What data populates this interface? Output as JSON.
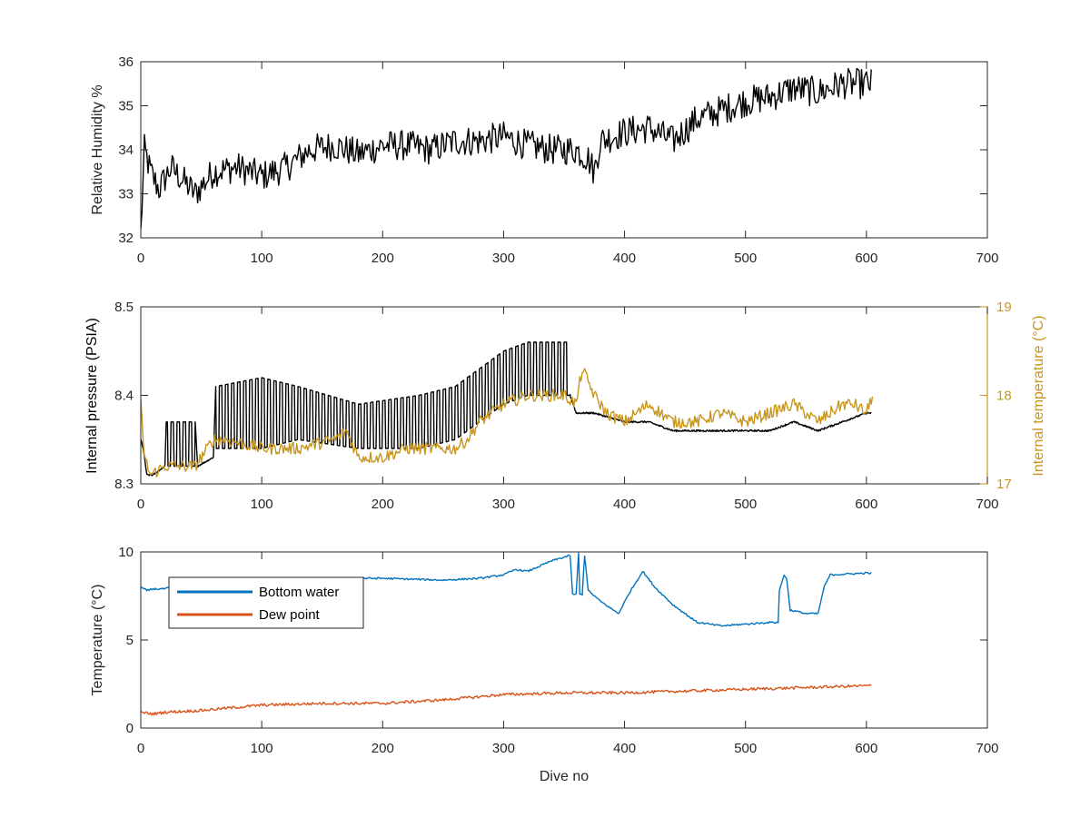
{
  "colors": {
    "background": "#ffffff",
    "axis": "#262626",
    "rh_line": "#000000",
    "pressure_line": "#000000",
    "internal_temp": "#C8961E",
    "bottom_water": "#0072BD",
    "dew_point": "#D95319"
  },
  "chart_data": [
    {
      "type": "line",
      "xlabel": "",
      "ylabel": "Relative Humidity %",
      "xlim": [
        0,
        700
      ],
      "ylim": [
        32,
        36
      ],
      "xticks": [
        0,
        100,
        200,
        300,
        400,
        500,
        600,
        700
      ],
      "yticks": [
        32,
        33,
        34,
        35,
        36
      ],
      "xtick_labels": [
        "0",
        "100",
        "200",
        "300",
        "400",
        "500",
        "600",
        "700"
      ],
      "ytick_labels": [
        "32",
        "33",
        "34",
        "35",
        "36"
      ],
      "grid": false,
      "series": [
        {
          "color": "#000000",
          "noise": 0.35,
          "x": [
            0,
            3,
            8,
            15,
            25,
            35,
            45,
            60,
            80,
            100,
            120,
            140,
            160,
            180,
            200,
            220,
            240,
            260,
            280,
            300,
            320,
            340,
            360,
            370,
            375,
            380,
            400,
            420,
            440,
            460,
            480,
            500,
            520,
            540,
            560,
            580,
            600,
            604
          ],
          "y": [
            32.1,
            34.0,
            33.5,
            33.1,
            33.6,
            33.3,
            33.0,
            33.5,
            33.6,
            33.4,
            33.6,
            34.0,
            34.1,
            33.9,
            34.1,
            34.1,
            34.0,
            34.2,
            34.2,
            34.3,
            34.1,
            34.0,
            34.0,
            33.8,
            33.5,
            34.2,
            34.4,
            34.5,
            34.2,
            34.7,
            34.9,
            35.1,
            35.2,
            35.4,
            35.3,
            35.5,
            35.5,
            35.5
          ]
        }
      ]
    },
    {
      "type": "line",
      "xlabel": "",
      "ylabel": "Internal pressure (PSIA)",
      "ylabel_right": "Internal temperature (°C)",
      "xlim": [
        0,
        700
      ],
      "ylim": [
        8.3,
        8.5
      ],
      "ylim_right": [
        17,
        19
      ],
      "xticks": [
        0,
        100,
        200,
        300,
        400,
        500,
        600,
        700
      ],
      "yticks": [
        8.3,
        8.4,
        8.5
      ],
      "yticks_right": [
        17,
        18,
        19
      ],
      "xtick_labels": [
        "0",
        "100",
        "200",
        "300",
        "400",
        "500",
        "600",
        "700"
      ],
      "ytick_labels": [
        "8.3",
        "8.4",
        "8.5"
      ],
      "ytick_labels_right": [
        "17",
        "18",
        "19"
      ],
      "grid": false,
      "series": [
        {
          "axis": "left",
          "color": "#000000",
          "x": [
            0,
            2,
            5,
            10,
            20,
            21,
            45,
            47,
            60,
            62,
            100,
            130,
            180,
            230,
            260,
            280,
            300,
            320,
            352,
            355,
            360,
            375,
            400,
            420,
            440,
            460,
            480,
            500,
            520,
            540,
            560,
            580,
            600,
            604
          ],
          "lo": [
            8.35,
            8.34,
            8.31,
            8.31,
            8.32,
            8.32,
            8.32,
            8.32,
            8.33,
            8.34,
            8.34,
            8.35,
            8.34,
            8.34,
            8.35,
            8.37,
            8.39,
            8.4,
            8.4,
            8.4,
            8.38,
            8.38,
            8.37,
            8.37,
            8.36,
            8.36,
            8.36,
            8.36,
            8.36,
            8.37,
            8.36,
            8.37,
            8.38,
            8.38
          ],
          "hi": [
            8.35,
            8.34,
            8.31,
            8.31,
            8.32,
            8.37,
            8.37,
            8.32,
            8.33,
            8.41,
            8.42,
            8.41,
            8.39,
            8.4,
            8.41,
            8.43,
            8.45,
            8.46,
            8.46,
            8.4,
            8.38,
            8.38,
            8.37,
            8.37,
            8.36,
            8.36,
            8.36,
            8.36,
            8.36,
            8.37,
            8.36,
            8.37,
            8.38,
            8.38
          ],
          "osc_period": 5
        },
        {
          "axis": "right",
          "color": "#C8961E",
          "noise": 0.07,
          "x": [
            0,
            3,
            8,
            20,
            45,
            50,
            60,
            70,
            100,
            130,
            160,
            170,
            180,
            200,
            220,
            240,
            260,
            270,
            280,
            300,
            320,
            350,
            360,
            365,
            375,
            385,
            400,
            420,
            440,
            460,
            480,
            500,
            520,
            540,
            560,
            580,
            590,
            600,
            605
          ],
          "y": [
            17.9,
            17.3,
            17.1,
            17.2,
            17.2,
            17.3,
            17.5,
            17.5,
            17.4,
            17.4,
            17.5,
            17.6,
            17.3,
            17.3,
            17.4,
            17.4,
            17.4,
            17.5,
            17.7,
            17.9,
            18.0,
            18.0,
            17.9,
            18.3,
            18.0,
            17.8,
            17.7,
            17.9,
            17.7,
            17.7,
            17.8,
            17.7,
            17.8,
            17.9,
            17.7,
            17.9,
            17.9,
            17.8,
            18.0
          ]
        }
      ]
    },
    {
      "type": "line",
      "xlabel": "Dive no",
      "ylabel": "Temperature (°C)",
      "xlim": [
        0,
        700
      ],
      "ylim": [
        0,
        10
      ],
      "xticks": [
        0,
        100,
        200,
        300,
        400,
        500,
        600,
        700
      ],
      "yticks": [
        0,
        5,
        10
      ],
      "xtick_labels": [
        "0",
        "100",
        "200",
        "300",
        "400",
        "500",
        "600",
        "700"
      ],
      "ytick_labels": [
        "0",
        "5",
        "10"
      ],
      "grid": false,
      "legend": "upper-left",
      "series": [
        {
          "name": "Bottom water",
          "color": "#0072BD",
          "noise": 0.05,
          "x": [
            0,
            5,
            10,
            20,
            30,
            40,
            60,
            80,
            100,
            150,
            200,
            250,
            280,
            300,
            310,
            320,
            340,
            355,
            357,
            360,
            362,
            363,
            365,
            367,
            370,
            380,
            395,
            405,
            415,
            425,
            440,
            460,
            480,
            500,
            520,
            527,
            528,
            532,
            534,
            537,
            550,
            560,
            565,
            570,
            600,
            604
          ],
          "y": [
            8.0,
            7.8,
            7.9,
            7.9,
            8.1,
            8.4,
            8.5,
            8.5,
            8.5,
            8.5,
            8.5,
            8.4,
            8.5,
            8.7,
            9.0,
            8.9,
            9.5,
            9.8,
            7.6,
            7.6,
            9.9,
            7.6,
            7.6,
            9.8,
            7.8,
            7.2,
            6.5,
            7.8,
            8.9,
            8.0,
            7.0,
            6.0,
            5.8,
            5.9,
            6.0,
            6.0,
            7.8,
            8.7,
            8.5,
            6.7,
            6.5,
            6.5,
            8.0,
            8.7,
            8.8,
            8.8
          ]
        },
        {
          "name": "Dew point",
          "color": "#D95319",
          "noise": 0.08,
          "x": [
            0,
            10,
            20,
            50,
            100,
            150,
            200,
            250,
            300,
            350,
            400,
            450,
            500,
            550,
            600,
            604
          ],
          "y": [
            0.9,
            0.8,
            0.9,
            1.0,
            1.3,
            1.4,
            1.4,
            1.6,
            1.9,
            2.0,
            2.0,
            2.1,
            2.2,
            2.3,
            2.4,
            2.4
          ]
        }
      ]
    }
  ]
}
